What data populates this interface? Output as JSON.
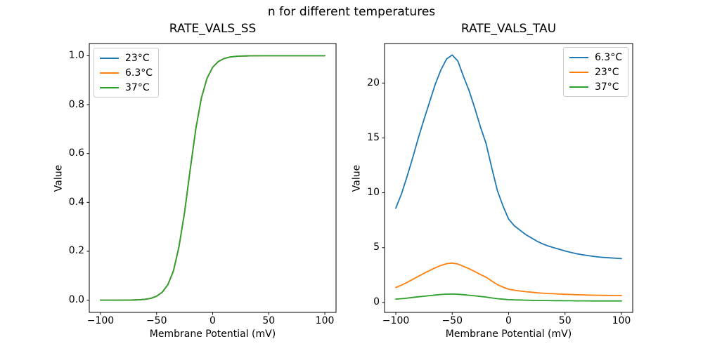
{
  "figure": {
    "suptitle": "n for different temperatures",
    "background": "#ffffff",
    "axis_color": "#000000",
    "legend_border_color": "#cccccc"
  },
  "chart_data": [
    {
      "type": "line",
      "title": "RATE_VALS_SS",
      "xlabel": "Membrane Potential (mV)",
      "ylabel": "Value",
      "xlim": [
        -110,
        110
      ],
      "ylim": [
        -0.05,
        1.05
      ],
      "grid": false,
      "legend_position": "upper-left",
      "xticks": [
        -100,
        -50,
        0,
        50,
        100
      ],
      "xtick_labels": [
        "−100",
        "−50",
        "0",
        "50",
        "100"
      ],
      "yticks": [
        0.0,
        0.2,
        0.4,
        0.6,
        0.8,
        1.0
      ],
      "ytick_labels": [
        "0.0",
        "0.2",
        "0.4",
        "0.6",
        "0.8",
        "1.0"
      ],
      "x": [
        -100,
        -95,
        -90,
        -85,
        -80,
        -75,
        -70,
        -65,
        -60,
        -55,
        -50,
        -45,
        -40,
        -35,
        -30,
        -25,
        -20,
        -15,
        -10,
        -5,
        0,
        5,
        10,
        15,
        20,
        25,
        30,
        35,
        40,
        45,
        50,
        55,
        60,
        65,
        70,
        75,
        80,
        85,
        90,
        95,
        100
      ],
      "series": [
        {
          "name": "23°C",
          "color": "#1f77b4",
          "values": [
            0.0,
            0.0,
            0.0001,
            0.0001,
            0.0002,
            0.0004,
            0.0009,
            0.0018,
            0.0037,
            0.0078,
            0.016,
            0.0324,
            0.0629,
            0.1192,
            0.2188,
            0.3605,
            0.5356,
            0.7019,
            0.8278,
            0.9077,
            0.9526,
            0.9762,
            0.9882,
            0.9942,
            0.9971,
            0.9986,
            0.9993,
            0.9997,
            0.9998,
            0.9999,
            1.0,
            1.0,
            1.0,
            1.0,
            1.0,
            1.0,
            1.0,
            1.0,
            1.0,
            1.0,
            1.0
          ]
        },
        {
          "name": "6.3°C",
          "color": "#ff7f0e",
          "values": [
            0.0,
            0.0,
            0.0001,
            0.0001,
            0.0002,
            0.0004,
            0.0009,
            0.0018,
            0.0037,
            0.0078,
            0.016,
            0.0324,
            0.0629,
            0.1192,
            0.2188,
            0.3605,
            0.5356,
            0.7019,
            0.8278,
            0.9077,
            0.9526,
            0.9762,
            0.9882,
            0.9942,
            0.9971,
            0.9986,
            0.9993,
            0.9997,
            0.9998,
            0.9999,
            1.0,
            1.0,
            1.0,
            1.0,
            1.0,
            1.0,
            1.0,
            1.0,
            1.0,
            1.0,
            1.0
          ]
        },
        {
          "name": "37°C",
          "color": "#2ca02c",
          "values": [
            0.0,
            0.0,
            0.0001,
            0.0001,
            0.0002,
            0.0004,
            0.0009,
            0.0018,
            0.0037,
            0.0078,
            0.016,
            0.0324,
            0.0629,
            0.1192,
            0.2188,
            0.3605,
            0.5356,
            0.7019,
            0.8278,
            0.9077,
            0.9526,
            0.9762,
            0.9882,
            0.9942,
            0.9971,
            0.9986,
            0.9993,
            0.9997,
            0.9998,
            0.9999,
            1.0,
            1.0,
            1.0,
            1.0,
            1.0,
            1.0,
            1.0,
            1.0,
            1.0,
            1.0,
            1.0
          ]
        }
      ]
    },
    {
      "type": "line",
      "title": "RATE_VALS_TAU",
      "xlabel": "Membrane Potential (mV)",
      "ylabel": "Value",
      "xlim": [
        -110,
        110
      ],
      "ylim": [
        -0.9,
        23.6
      ],
      "grid": false,
      "legend_position": "upper-right",
      "xticks": [
        -100,
        -50,
        0,
        50,
        100
      ],
      "xtick_labels": [
        "−100",
        "−50",
        "0",
        "50",
        "100"
      ],
      "yticks": [
        0,
        5,
        10,
        15,
        20
      ],
      "ytick_labels": [
        "0",
        "5",
        "10",
        "15",
        "20"
      ],
      "x": [
        -100,
        -95,
        -90,
        -85,
        -80,
        -75,
        -70,
        -65,
        -60,
        -55,
        -50,
        -45,
        -40,
        -35,
        -30,
        -25,
        -20,
        -15,
        -10,
        -5,
        0,
        5,
        10,
        15,
        20,
        25,
        30,
        35,
        40,
        45,
        50,
        55,
        60,
        65,
        70,
        75,
        80,
        85,
        90,
        95,
        100
      ],
      "series": [
        {
          "name": "6.3°C",
          "color": "#1f77b4",
          "values": [
            8.6,
            9.9,
            11.5,
            13.2,
            15.0,
            16.7,
            18.3,
            19.9,
            21.2,
            22.2,
            22.55,
            22.0,
            20.6,
            19.3,
            17.7,
            16.0,
            14.5,
            12.3,
            10.2,
            8.8,
            7.6,
            7.0,
            6.6,
            6.2,
            5.9,
            5.6,
            5.35,
            5.15,
            5.0,
            4.85,
            4.7,
            4.57,
            4.45,
            4.36,
            4.28,
            4.21,
            4.15,
            4.1,
            4.07,
            4.03,
            4.0
          ]
        },
        {
          "name": "23°C",
          "color": "#ff7f0e",
          "values": [
            1.37,
            1.58,
            1.83,
            2.11,
            2.39,
            2.66,
            2.92,
            3.17,
            3.38,
            3.54,
            3.6,
            3.51,
            3.29,
            3.08,
            2.82,
            2.55,
            2.31,
            1.96,
            1.63,
            1.4,
            1.21,
            1.12,
            1.05,
            0.99,
            0.94,
            0.89,
            0.85,
            0.82,
            0.8,
            0.77,
            0.75,
            0.73,
            0.71,
            0.7,
            0.68,
            0.67,
            0.66,
            0.65,
            0.65,
            0.64,
            0.64
          ]
        },
        {
          "name": "37°C",
          "color": "#2ca02c",
          "values": [
            0.31,
            0.35,
            0.4,
            0.46,
            0.52,
            0.57,
            0.63,
            0.68,
            0.73,
            0.76,
            0.77,
            0.75,
            0.71,
            0.66,
            0.61,
            0.55,
            0.5,
            0.42,
            0.35,
            0.3,
            0.26,
            0.24,
            0.23,
            0.21,
            0.2,
            0.19,
            0.18,
            0.18,
            0.17,
            0.17,
            0.16,
            0.16,
            0.15,
            0.15,
            0.15,
            0.14,
            0.14,
            0.14,
            0.14,
            0.14,
            0.14
          ]
        }
      ]
    }
  ]
}
